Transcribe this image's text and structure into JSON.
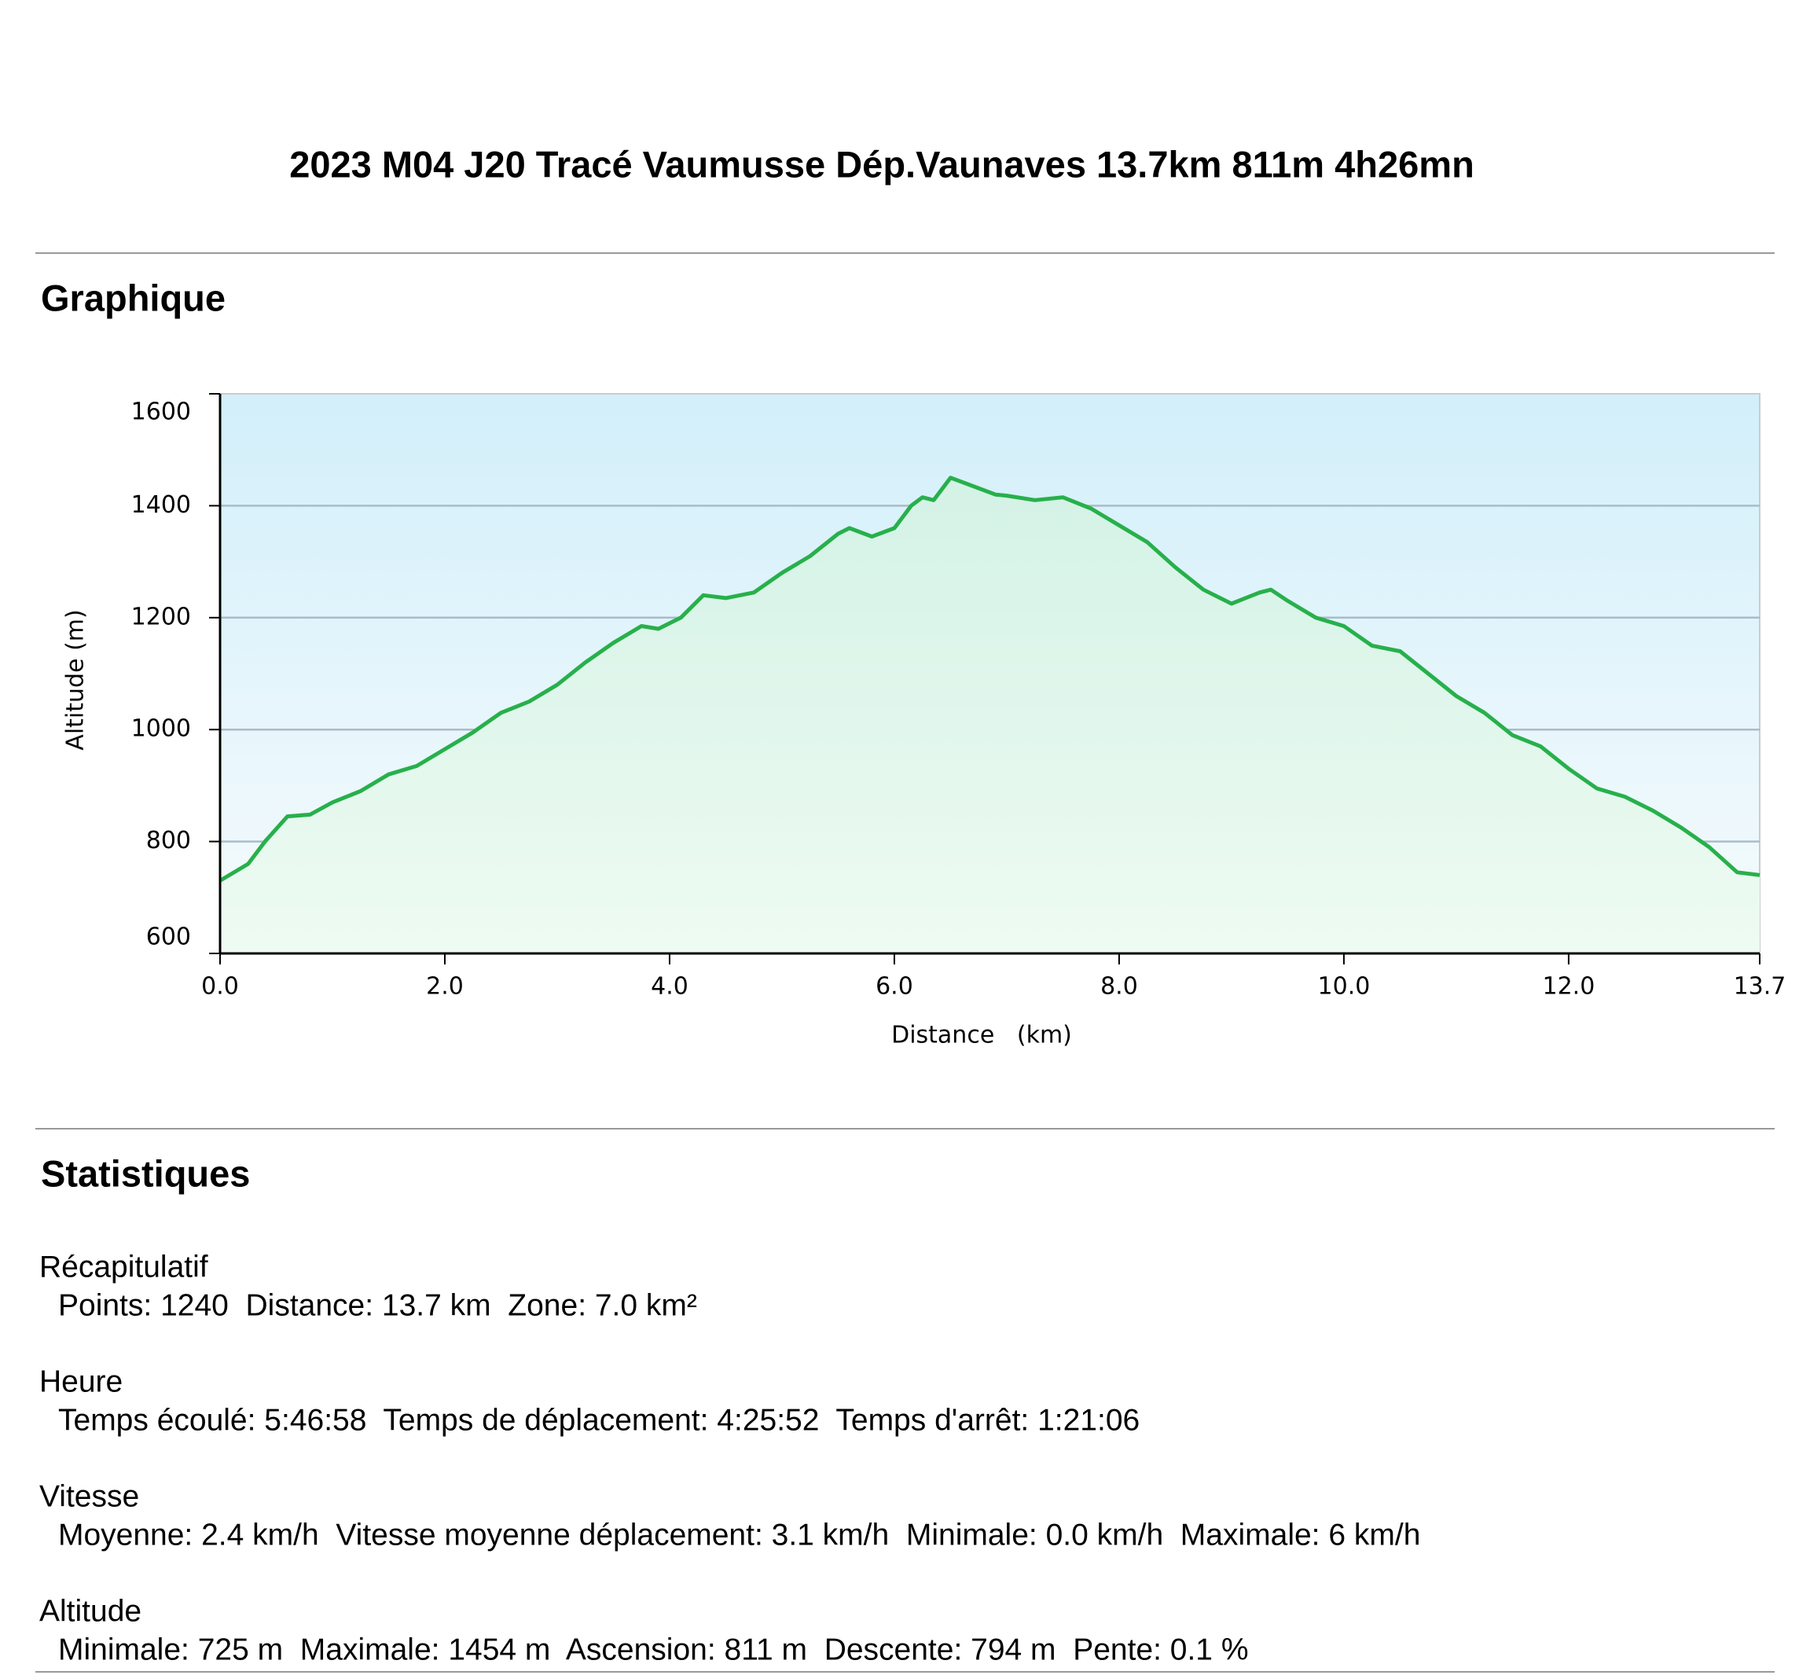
{
  "header": {
    "title": "2023 M04 J20 Tracé Vaumusse Dép.Vaunaves 13.7km 811m 4h26mn"
  },
  "chart_section": {
    "heading": "Graphique"
  },
  "chart_data": {
    "type": "area",
    "x": [
      0.0,
      0.25,
      0.4,
      0.6,
      0.8,
      1.0,
      1.25,
      1.5,
      1.75,
      2.0,
      2.25,
      2.5,
      2.75,
      3.0,
      3.25,
      3.5,
      3.75,
      3.9,
      4.1,
      4.3,
      4.5,
      4.75,
      5.0,
      5.25,
      5.5,
      5.6,
      5.8,
      6.0,
      6.15,
      6.25,
      6.35,
      6.5,
      6.7,
      6.9,
      7.0,
      7.25,
      7.5,
      7.75,
      8.0,
      8.25,
      8.5,
      8.75,
      9.0,
      9.25,
      9.35,
      9.5,
      9.75,
      10.0,
      10.25,
      10.5,
      10.75,
      11.0,
      11.25,
      11.5,
      11.75,
      12.0,
      12.25,
      12.5,
      12.75,
      13.0,
      13.25,
      13.5,
      13.7
    ],
    "values": [
      730,
      760,
      800,
      845,
      848,
      870,
      890,
      920,
      935,
      965,
      995,
      1030,
      1050,
      1080,
      1120,
      1155,
      1185,
      1180,
      1200,
      1240,
      1235,
      1245,
      1280,
      1310,
      1350,
      1360,
      1345,
      1360,
      1400,
      1415,
      1410,
      1450,
      1435,
      1420,
      1418,
      1410,
      1415,
      1395,
      1365,
      1335,
      1290,
      1250,
      1225,
      1245,
      1250,
      1230,
      1200,
      1185,
      1150,
      1140,
      1100,
      1060,
      1030,
      990,
      970,
      930,
      895,
      880,
      855,
      825,
      790,
      745,
      740
    ],
    "color": "#27b04b",
    "xlabel": "Distance   (km)",
    "ylabel": "Altitude (m)",
    "xlim": [
      0,
      13.7
    ],
    "ylim": [
      600,
      1600
    ],
    "xticks": [
      {
        "value": 0,
        "label": "0.0"
      },
      {
        "value": 2,
        "label": "2.0"
      },
      {
        "value": 4,
        "label": "4.0"
      },
      {
        "value": 6,
        "label": "6.0"
      },
      {
        "value": 8,
        "label": "8.0"
      },
      {
        "value": 10,
        "label": "10.0"
      },
      {
        "value": 12,
        "label": "12.0"
      },
      13.7
    ],
    "yticks": [
      600,
      800,
      1000,
      1200,
      1400,
      1600
    ],
    "grid": true
  },
  "stats": {
    "heading": "Statistiques",
    "groups": [
      {
        "title": "Récapitulatif",
        "line": "Points: 1240  Distance: 13.7 km  Zone: 7.0 km²"
      },
      {
        "title": "Heure",
        "line": "Temps écoulé: 5:46:58  Temps de déplacement: 4:25:52  Temps d'arrêt: 1:21:06"
      },
      {
        "title": "Vitesse",
        "line": "Moyenne: 2.4 km/h  Vitesse moyenne déplacement: 3.1 km/h  Minimale: 0.0 km/h  Maximale: 6 km/h"
      },
      {
        "title": "Altitude",
        "line": "Minimale: 725 m  Maximale: 1454 m  Ascension: 811 m  Descente: 794 m  Pente: 0.1 %"
      }
    ]
  }
}
